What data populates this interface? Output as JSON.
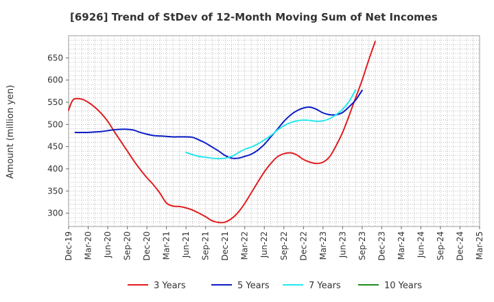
{
  "chart_data": {
    "type": "line",
    "title": "[6926]  Trend of StDev of 12-Month Moving Sum of Net Incomes",
    "xlabel": "",
    "ylabel": "Amount (million yen)",
    "ylim": [
      270,
      700
    ],
    "yticks": [
      300,
      350,
      400,
      450,
      500,
      550,
      600,
      650
    ],
    "xtick_labels": [
      "Dec-19",
      "Mar-20",
      "Jun-20",
      "Sep-20",
      "Dec-20",
      "Mar-21",
      "Jun-21",
      "Sep-21",
      "Dec-21",
      "Mar-22",
      "Jun-22",
      "Sep-22",
      "Dec-22",
      "Mar-23",
      "Jun-23",
      "Sep-23",
      "Dec-23",
      "Mar-24",
      "Jun-24",
      "Sep-24",
      "Dec-24",
      "Mar-25"
    ],
    "grid": true,
    "legend_position": "bottom",
    "series": [
      {
        "name": "3 Years",
        "color": "#e31a1c",
        "points": [
          [
            0,
            532
          ],
          [
            0.33,
            546
          ],
          [
            0.67,
            555
          ],
          [
            1,
            558
          ],
          [
            2,
            557
          ],
          [
            3,
            550
          ],
          [
            4,
            539
          ],
          [
            5,
            525
          ],
          [
            6,
            507
          ],
          [
            7,
            484
          ],
          [
            8,
            462
          ],
          [
            9,
            440
          ],
          [
            10,
            418
          ],
          [
            11,
            398
          ],
          [
            12,
            380
          ],
          [
            13,
            364
          ],
          [
            14,
            345
          ],
          [
            15,
            323
          ],
          [
            16,
            316
          ],
          [
            17,
            315
          ],
          [
            18,
            312
          ],
          [
            19,
            307
          ],
          [
            20,
            300
          ],
          [
            21,
            292
          ],
          [
            22,
            283
          ],
          [
            23,
            279
          ],
          [
            24,
            280
          ],
          [
            25,
            288
          ],
          [
            26,
            302
          ],
          [
            27,
            322
          ],
          [
            28,
            346
          ],
          [
            29,
            370
          ],
          [
            30,
            393
          ],
          [
            31,
            412
          ],
          [
            32,
            427
          ],
          [
            33,
            434
          ],
          [
            34,
            436
          ],
          [
            35,
            431
          ],
          [
            36,
            421
          ],
          [
            37,
            415
          ],
          [
            38,
            412
          ],
          [
            39,
            415
          ],
          [
            40,
            427
          ],
          [
            41,
            452
          ],
          [
            42,
            482
          ],
          [
            43,
            520
          ],
          [
            44,
            560
          ],
          [
            45,
            600
          ],
          [
            46,
            645
          ],
          [
            47,
            687
          ]
        ]
      },
      {
        "name": "5 Years",
        "color": "#0a1bc4",
        "points": [
          [
            1,
            482
          ],
          [
            2,
            482
          ],
          [
            3,
            482
          ],
          [
            4,
            483
          ],
          [
            5,
            484
          ],
          [
            6,
            486
          ],
          [
            7,
            488
          ],
          [
            8,
            489
          ],
          [
            9,
            489
          ],
          [
            10,
            487
          ],
          [
            11,
            482
          ],
          [
            12,
            478
          ],
          [
            13,
            475
          ],
          [
            14,
            474
          ],
          [
            15,
            473
          ],
          [
            16,
            472
          ],
          [
            17,
            472
          ],
          [
            18,
            472
          ],
          [
            19,
            471
          ],
          [
            20,
            465
          ],
          [
            21,
            458
          ],
          [
            22,
            449
          ],
          [
            23,
            440
          ],
          [
            24,
            430
          ],
          [
            25,
            424
          ],
          [
            26,
            424
          ],
          [
            27,
            428
          ],
          [
            28,
            433
          ],
          [
            29,
            442
          ],
          [
            30,
            455
          ],
          [
            31,
            472
          ],
          [
            32,
            489
          ],
          [
            33,
            507
          ],
          [
            34,
            521
          ],
          [
            35,
            531
          ],
          [
            36,
            537
          ],
          [
            37,
            539
          ],
          [
            38,
            534
          ],
          [
            39,
            526
          ],
          [
            40,
            522
          ],
          [
            41,
            522
          ],
          [
            42,
            527
          ],
          [
            43,
            540
          ],
          [
            44,
            555
          ],
          [
            45,
            577
          ]
        ]
      },
      {
        "name": "7 Years",
        "color": "#22e8ee",
        "points": [
          [
            18,
            437
          ],
          [
            19,
            432
          ],
          [
            20,
            428
          ],
          [
            21,
            426
          ],
          [
            22,
            424
          ],
          [
            23,
            423
          ],
          [
            24,
            424
          ],
          [
            25,
            428
          ],
          [
            26,
            436
          ],
          [
            27,
            444
          ],
          [
            28,
            449
          ],
          [
            29,
            456
          ],
          [
            30,
            465
          ],
          [
            31,
            475
          ],
          [
            32,
            487
          ],
          [
            33,
            497
          ],
          [
            34,
            504
          ],
          [
            35,
            508
          ],
          [
            36,
            510
          ],
          [
            37,
            509
          ],
          [
            38,
            507
          ],
          [
            39,
            508
          ],
          [
            40,
            513
          ],
          [
            41,
            522
          ],
          [
            42,
            534
          ],
          [
            43,
            552
          ],
          [
            44,
            578
          ]
        ]
      },
      {
        "name": "10 Years",
        "color": "#1f8a1f",
        "points": []
      }
    ]
  }
}
